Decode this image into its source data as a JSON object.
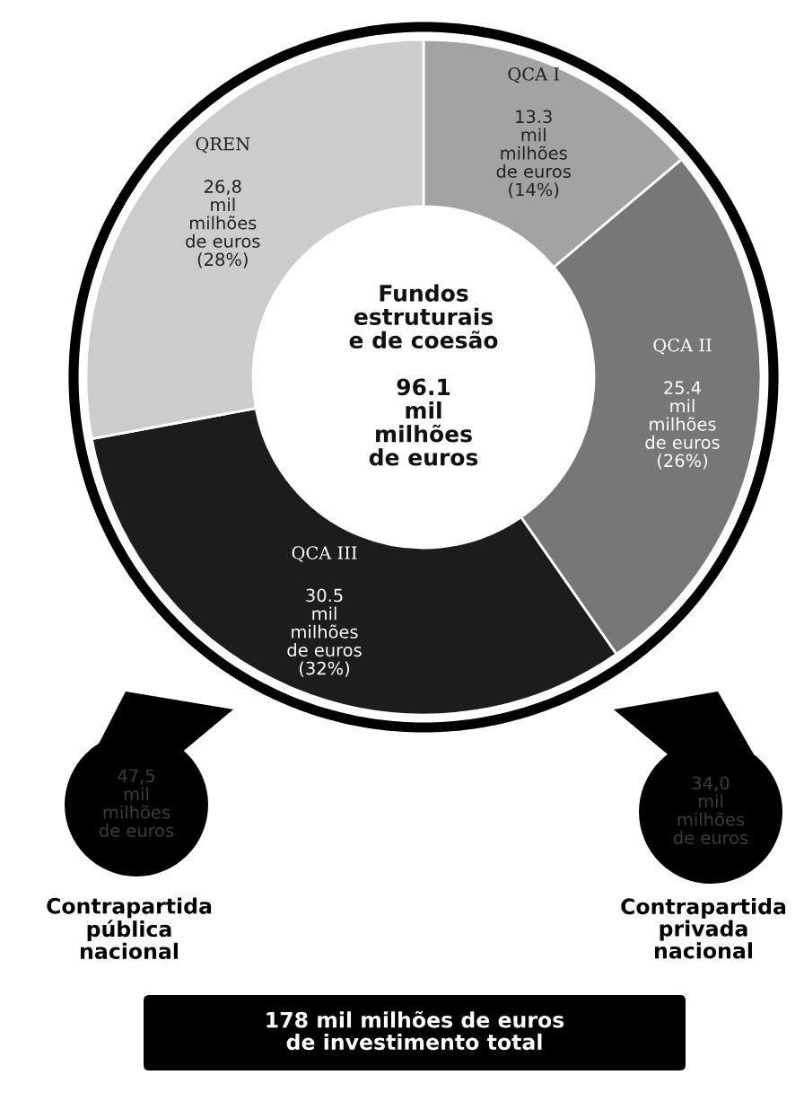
{
  "chart_data": {
    "type": "donut",
    "categories": [
      "QCA I",
      "QCA II",
      "QCA III",
      "QREN"
    ],
    "values": [
      13.3,
      25.4,
      30.5,
      26.8
    ],
    "colors": [
      "#a3a3a3",
      "#777777",
      "#1c1c1c",
      "#cccccc"
    ],
    "value_labels": [
      "13.3\nmil\nmilhões\nde euros\n(14%)",
      "25.4\nmil\nmilhões\nde euros\n(26%)",
      "30.5\nmil\nmilhões\nde euros\n(32%)",
      "26,8\nmil\nmilhões\nde euros\n(28%)"
    ],
    "annotations": [
      "Fundos\nestruturais\ne de coesão\n\n96.1\nmil\nmilhões\nde euros",
      "47,5\nmil\nmilhões\nde euros",
      "34,0\nmil\nmilhões\nde euros",
      "Contrapartida\npública\nnacional",
      "Contrapartida\nprivada\nnacional",
      "178 mil milhões de euros\nde investimento total"
    ]
  }
}
